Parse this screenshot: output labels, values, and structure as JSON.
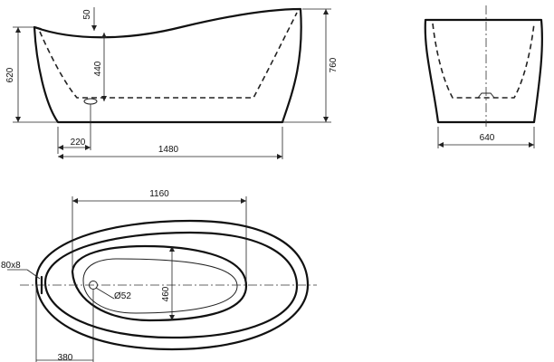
{
  "dimensions": {
    "side_bottom_depth": "50",
    "side_inner_depth": "440",
    "side_height_low": "620",
    "side_height_high": "760",
    "side_drain_offset": "220",
    "side_length": "1480",
    "end_width": "640",
    "top_inner_length": "1160",
    "top_overflow": "80x8",
    "top_drain_diameter": "Ø52",
    "top_inner_width": "460",
    "top_drain_offset": "380"
  }
}
